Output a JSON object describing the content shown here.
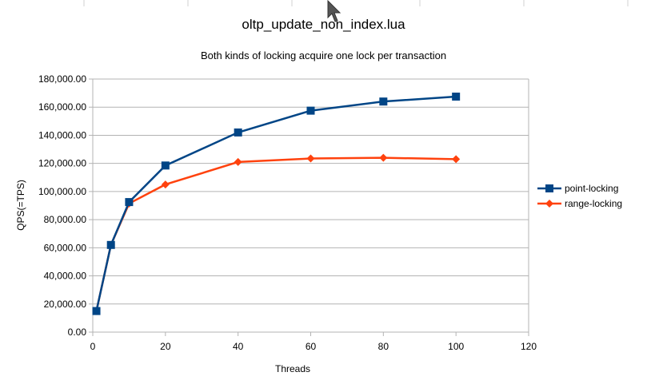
{
  "chart_data": {
    "type": "scatter",
    "title": "oltp_update_non_index.lua",
    "subtitle": "Both kinds of locking acquire one lock per transaction",
    "xlabel": "Threads",
    "ylabel": "QPS(=TPS)",
    "xlim": [
      0,
      120
    ],
    "ylim": [
      0,
      180000
    ],
    "x_ticks": [
      "0",
      "20",
      "40",
      "60",
      "80",
      "100",
      "120"
    ],
    "y_ticks": [
      "0.00",
      "20,000.00",
      "40,000.00",
      "60,000.00",
      "80,000.00",
      "100,000.00",
      "120,000.00",
      "140,000.00",
      "160,000.00",
      "180,000.00"
    ],
    "grid": "horizontal",
    "legend_position": "right",
    "series": [
      {
        "name": "point-locking",
        "color": "#004586",
        "marker": "square",
        "x": [
          1,
          5,
          10,
          20,
          40,
          60,
          80,
          100
        ],
        "y": [
          15000,
          62000,
          92500,
          118500,
          142000,
          157500,
          164000,
          167500
        ]
      },
      {
        "name": "range-locking",
        "color": "#ff420e",
        "marker": "diamond",
        "x": [
          1,
          5,
          10,
          20,
          40,
          60,
          80,
          100
        ],
        "y": [
          15000,
          62000,
          91500,
          105000,
          121000,
          123500,
          124000,
          123000
        ]
      }
    ]
  }
}
